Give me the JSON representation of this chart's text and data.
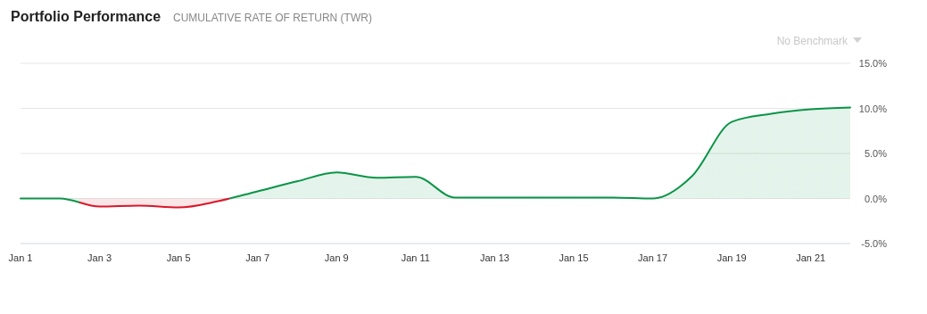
{
  "chart_data": {
    "type": "area",
    "title": "Portfolio Performance",
    "subtitle": "CUMULATIVE RATE OF RETURN (TWR)",
    "annotations": [
      "No Benchmark"
    ],
    "x": [
      "--01-01",
      "--01-02",
      "--01-03",
      "--01-04",
      "--01-05",
      "--01-06",
      "--01-07",
      "--01-08",
      "--01-09",
      "--01-10",
      "--01-11",
      "--01-12",
      "--01-13",
      "--01-14",
      "--01-15",
      "--01-16",
      "--01-17",
      "--01-18",
      "--01-19",
      "--01-20",
      "--01-21",
      "--01-22"
    ],
    "series": [
      {
        "colors": [
          "#0a9447",
          "#0a9447",
          "#d9172a",
          "#d9172a",
          "#d9172a",
          "#d9172a",
          "#0a9447",
          "#0a9447",
          "#0a9447",
          "#0a9447",
          "#0a9447",
          "#0a9447",
          "#0a9447",
          "#0a9447",
          "#0a9447",
          "#0a9447",
          "#0a9447",
          "#0a9447",
          "#0a9447",
          "#0a9447",
          "#0a9447",
          "#0a9447"
        ],
        "values": [
          0,
          0,
          -0.9,
          -0.8,
          -1,
          -0.3,
          0.8,
          1.9,
          2.9,
          2.3,
          2.4,
          0.1,
          0.1,
          0.1,
          0.1,
          0.1,
          0,
          2.5,
          8.5,
          9.4,
          9.9,
          10.1
        ]
      }
    ],
    "xlim": [
      "--01-01",
      "--01-22"
    ],
    "xticks": [
      {
        "value": "--01-01",
        "label": "Jan 1"
      },
      {
        "value": "--01-03",
        "label": "Jan 3"
      },
      {
        "value": "--01-05",
        "label": "Jan 5"
      },
      {
        "value": "--01-07",
        "label": "Jan 7"
      },
      {
        "value": "--01-09",
        "label": "Jan 9"
      },
      {
        "value": "--01-11",
        "label": "Jan 11"
      },
      {
        "value": "--01-13",
        "label": "Jan 13"
      },
      {
        "value": "--01-15",
        "label": "Jan 15"
      },
      {
        "value": "--01-17",
        "label": "Jan 17"
      },
      {
        "value": "--01-19",
        "label": "Jan 19"
      },
      {
        "value": "--01-21",
        "label": "Jan 21"
      }
    ],
    "ylim": [
      -5,
      15
    ],
    "yticks": [
      {
        "value": -5,
        "label": "-5.0%"
      },
      {
        "value": 0,
        "label": "0.0%"
      },
      {
        "value": 5,
        "label": "5.0%"
      },
      {
        "value": 10,
        "label": "10.0%"
      },
      {
        "value": 15,
        "label": "15.0%"
      }
    ],
    "grid": "y",
    "marker": "none",
    "line_style": "solid"
  }
}
